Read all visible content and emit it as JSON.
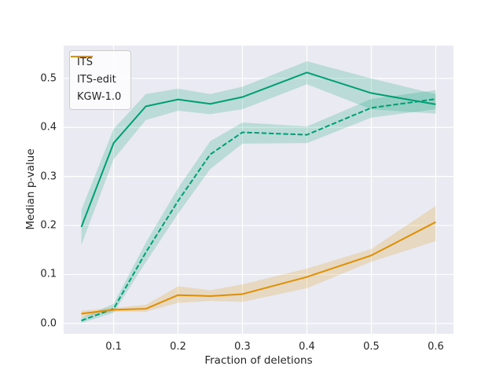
{
  "figure": {
    "background": "#ffffff",
    "plot_background": "#eaeaf2",
    "grid_color": "#ffffff",
    "text_color": "#262626"
  },
  "chart_data": {
    "type": "line",
    "xlabel": "Fraction of deletions",
    "ylabel": "Median p-value",
    "grid": true,
    "legend_position": "upper left",
    "band_alpha": 0.2,
    "xlim": [
      0.0225,
      0.6275
    ],
    "ylim": [
      -0.021,
      0.567
    ],
    "xticks": [
      0.1,
      0.2,
      0.3,
      0.4,
      0.5,
      0.6
    ],
    "xtick_labels": [
      "0.1",
      "0.2",
      "0.3",
      "0.4",
      "0.5",
      "0.6"
    ],
    "yticks": [
      0.0,
      0.1,
      0.2,
      0.3,
      0.4,
      0.5
    ],
    "ytick_labels": [
      "0.0",
      "0.1",
      "0.2",
      "0.3",
      "0.4",
      "0.5"
    ],
    "x": [
      0.05,
      0.1,
      0.15,
      0.2,
      0.25,
      0.3,
      0.4,
      0.5,
      0.6
    ],
    "series": [
      {
        "name": "ITS",
        "color": "#029e73",
        "style": "solid",
        "values": [
          0.197,
          0.368,
          0.443,
          0.457,
          0.448,
          0.462,
          0.512,
          0.47,
          0.447
        ],
        "band_low": [
          0.16,
          0.335,
          0.415,
          0.434,
          0.427,
          0.437,
          0.488,
          0.437,
          0.428
        ],
        "band_high": [
          0.232,
          0.397,
          0.468,
          0.479,
          0.468,
          0.483,
          0.535,
          0.5,
          0.468
        ]
      },
      {
        "name": "ITS-edit",
        "color": "#029e73",
        "style": "dashed",
        "values": [
          0.006,
          0.03,
          0.145,
          0.25,
          0.345,
          0.39,
          0.385,
          0.44,
          0.458
        ],
        "band_low": [
          0.001,
          0.022,
          0.125,
          0.224,
          0.315,
          0.367,
          0.368,
          0.42,
          0.437
        ],
        "band_high": [
          0.012,
          0.04,
          0.165,
          0.276,
          0.372,
          0.41,
          0.402,
          0.458,
          0.476
        ]
      },
      {
        "name": "KGW-1.0",
        "color": "#de8f05",
        "style": "solid",
        "values": [
          0.02,
          0.028,
          0.03,
          0.058,
          0.056,
          0.06,
          0.095,
          0.139,
          0.207
        ],
        "band_low": [
          0.013,
          0.024,
          0.024,
          0.042,
          0.046,
          0.044,
          0.072,
          0.126,
          0.168
        ],
        "band_high": [
          0.026,
          0.032,
          0.038,
          0.076,
          0.068,
          0.08,
          0.112,
          0.152,
          0.24
        ]
      }
    ]
  }
}
